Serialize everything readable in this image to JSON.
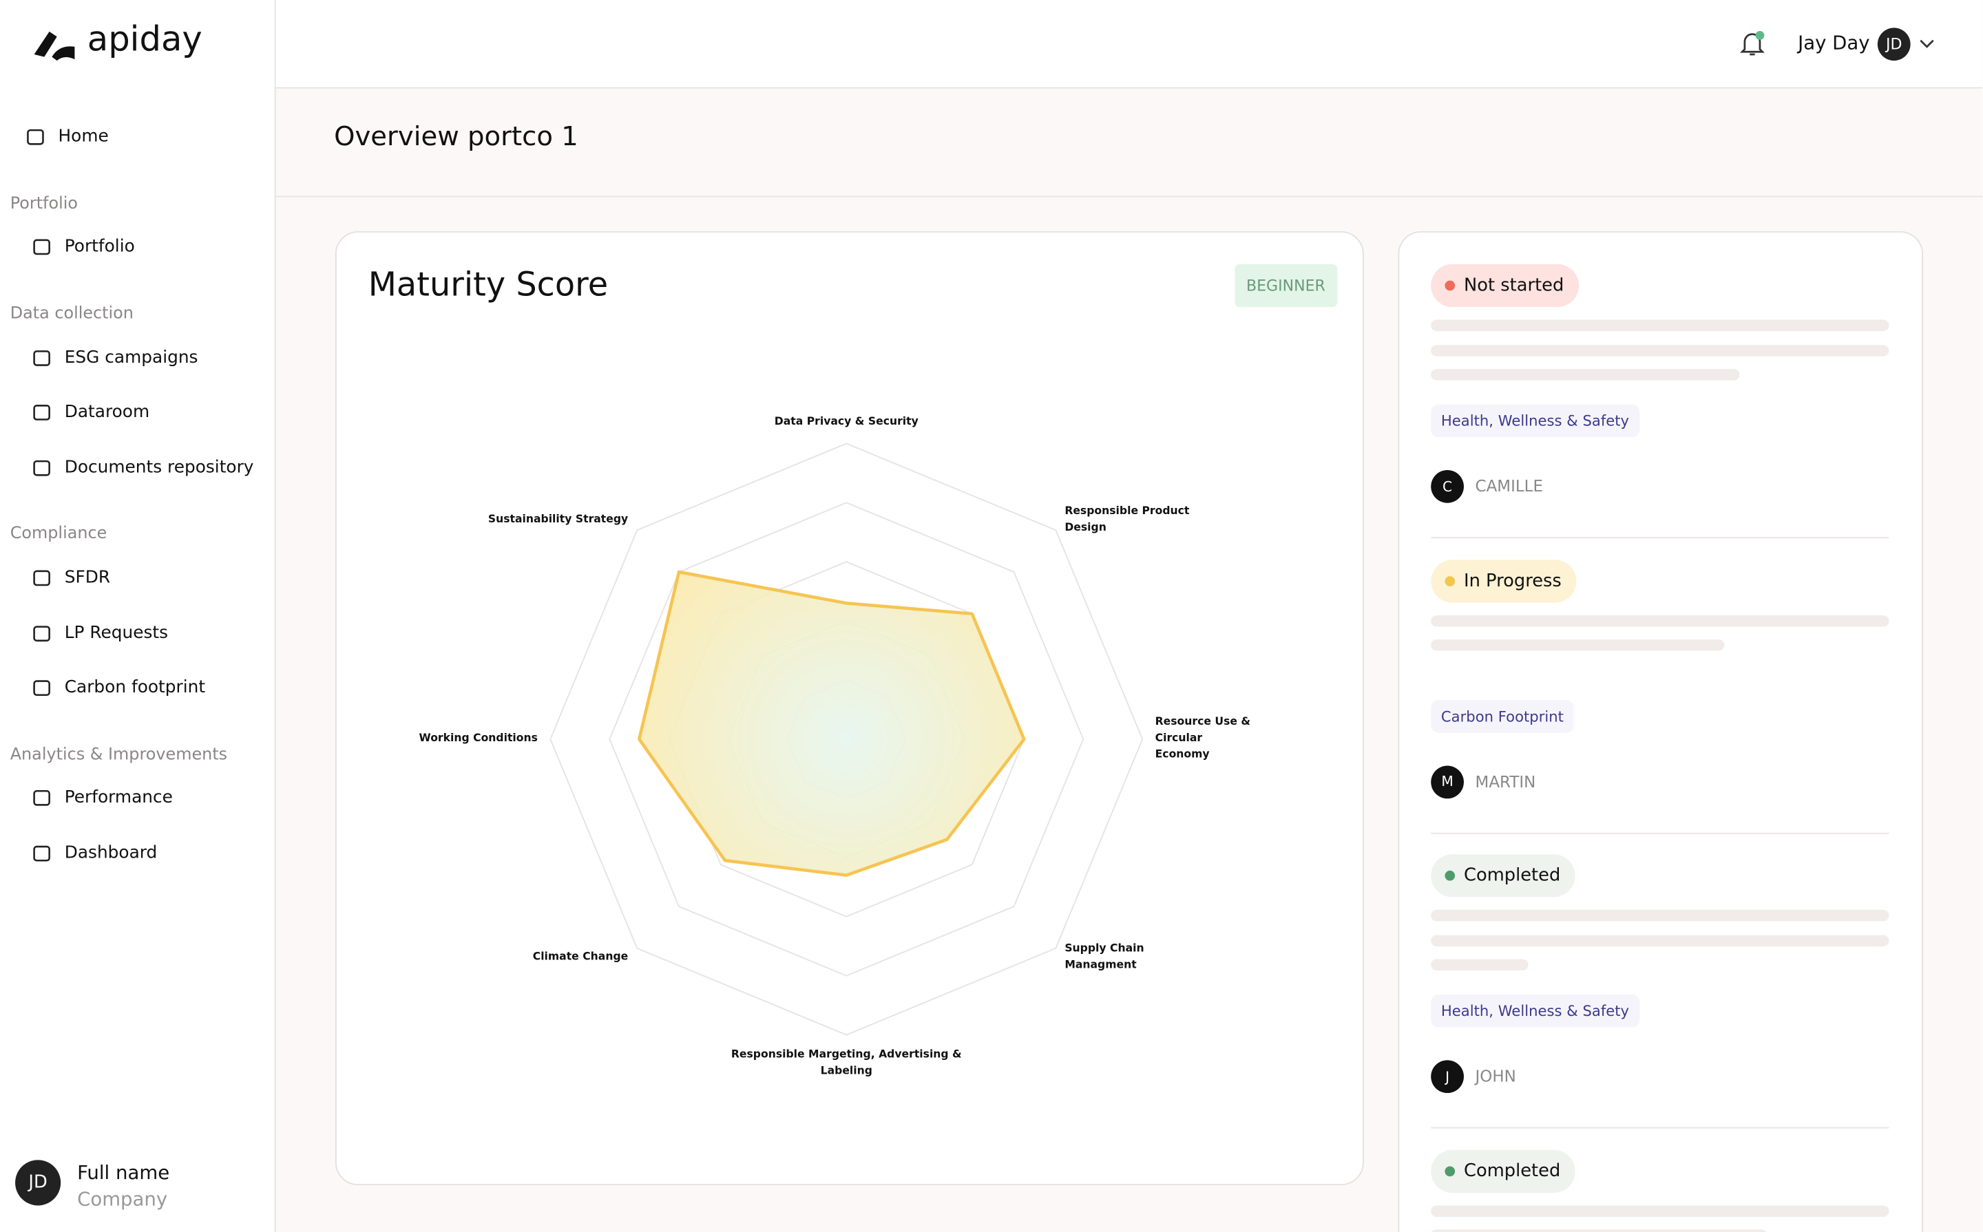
{
  "brand": "apiday",
  "header": {
    "user_name": "Jay Day",
    "user_initials": "JD"
  },
  "sidebar": {
    "items": [
      {
        "label": "Home"
      },
      {
        "section": "Portfolio"
      },
      {
        "label": "Portfolio"
      },
      {
        "section": "Data collection"
      },
      {
        "label": "ESG campaigns"
      },
      {
        "label": "Dataroom"
      },
      {
        "label": "Documents repository"
      },
      {
        "section": "Compliance"
      },
      {
        "label": "SFDR"
      },
      {
        "label": "LP Requests"
      },
      {
        "label": "Carbon footprint"
      },
      {
        "section": "Analytics & Improvements"
      },
      {
        "label": "Performance"
      },
      {
        "label": "Dashboard"
      }
    ],
    "profile": {
      "initials": "JD",
      "name": "Full name",
      "company": "Company"
    }
  },
  "page_title": "Overview portco 1",
  "chart_data": {
    "type": "radar",
    "title": "Maturity Score",
    "badge": "BEGINNER",
    "categories": [
      "Data Privacy & Security",
      "Responsible Product Design",
      "Resource Use & Circular Economy",
      "Supply Chain Managment",
      "Responsible Margeting, Advertising & Labeling",
      "Climate Change",
      "Working Conditions",
      "Sustainability Strategy"
    ],
    "values": [
      2.3,
      3.0,
      3.0,
      2.4,
      2.3,
      2.9,
      3.5,
      4.0
    ],
    "color": "#f6c453",
    "rlim": [
      0,
      5
    ],
    "rticks": [
      1,
      2,
      3,
      4,
      5
    ]
  },
  "tasks": [
    {
      "status": "Not started",
      "tag": "Health, Wellness & Safety",
      "initial": "C",
      "owner": "CAMILLE"
    },
    {
      "status": "In Progress",
      "tag": "Carbon Footprint",
      "initial": "M",
      "owner": "MARTIN"
    },
    {
      "status": "Completed",
      "tag": "Health, Wellness & Safety",
      "initial": "J",
      "owner": "JOHN"
    },
    {
      "status": "Completed"
    }
  ]
}
